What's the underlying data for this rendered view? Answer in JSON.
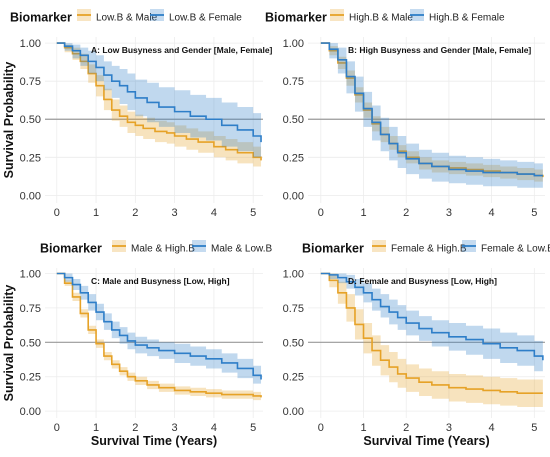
{
  "colors": {
    "series_a": "#E6A227",
    "series_b": "#2E7EC8",
    "refline": "#9a9a9a",
    "grid": "#ececec"
  },
  "axes": {
    "ylabel": "Survival Probability",
    "xlabel": "Survival Time (Years)",
    "xlim": [
      -0.3,
      5.25
    ],
    "ylim": [
      -0.05,
      1.04
    ],
    "x_ticks": [
      "0",
      "1",
      "2",
      "3",
      "4",
      "5"
    ],
    "y_ticks": [
      "0.00",
      "0.25",
      "0.50",
      "0.75",
      "1.00"
    ],
    "y_tick_values": [
      0,
      0.25,
      0.5,
      0.75,
      1
    ],
    "reference_line_y": 0.5
  },
  "chart_data": [
    {
      "type": "line",
      "title": "A: Low Busyness and Gender [Male, Female]",
      "legend_title": "Biomarker",
      "legend_position": "top",
      "series": [
        {
          "name": "Low.B & Male",
          "color": "#E6A227",
          "x": [
            0,
            0.2,
            0.4,
            0.6,
            0.8,
            1.0,
            1.2,
            1.4,
            1.6,
            1.8,
            2.0,
            2.2,
            2.5,
            2.8,
            3.0,
            3.3,
            3.6,
            4.0,
            4.3,
            4.6,
            5.0,
            5.2
          ],
          "y": [
            1.0,
            0.97,
            0.93,
            0.88,
            0.8,
            0.72,
            0.63,
            0.56,
            0.52,
            0.48,
            0.46,
            0.44,
            0.42,
            0.41,
            0.39,
            0.37,
            0.35,
            0.32,
            0.3,
            0.28,
            0.25,
            0.23
          ],
          "lower": [
            1.0,
            0.94,
            0.89,
            0.83,
            0.74,
            0.65,
            0.56,
            0.49,
            0.45,
            0.41,
            0.39,
            0.37,
            0.35,
            0.34,
            0.32,
            0.3,
            0.28,
            0.25,
            0.23,
            0.21,
            0.19,
            0.17
          ],
          "upper": [
            1.0,
            0.99,
            0.97,
            0.93,
            0.86,
            0.79,
            0.7,
            0.63,
            0.59,
            0.55,
            0.53,
            0.51,
            0.49,
            0.48,
            0.46,
            0.44,
            0.42,
            0.39,
            0.37,
            0.35,
            0.32,
            0.3
          ]
        },
        {
          "name": "Low.B & Female",
          "color": "#2E7EC8",
          "x": [
            0,
            0.2,
            0.4,
            0.6,
            0.8,
            1.0,
            1.2,
            1.4,
            1.6,
            1.8,
            2.0,
            2.3,
            2.6,
            3.0,
            3.4,
            3.8,
            4.2,
            4.6,
            5.0,
            5.2
          ],
          "y": [
            1.0,
            0.98,
            0.95,
            0.92,
            0.88,
            0.84,
            0.79,
            0.75,
            0.72,
            0.68,
            0.64,
            0.61,
            0.58,
            0.55,
            0.52,
            0.5,
            0.46,
            0.43,
            0.39,
            0.35
          ],
          "lower": [
            1.0,
            0.95,
            0.9,
            0.85,
            0.8,
            0.75,
            0.69,
            0.64,
            0.6,
            0.56,
            0.52,
            0.48,
            0.45,
            0.41,
            0.38,
            0.36,
            0.32,
            0.29,
            0.25,
            0.22
          ],
          "upper": [
            1.0,
            1.0,
            0.99,
            0.97,
            0.95,
            0.92,
            0.88,
            0.85,
            0.83,
            0.8,
            0.76,
            0.74,
            0.71,
            0.69,
            0.66,
            0.64,
            0.61,
            0.58,
            0.54,
            0.5
          ]
        }
      ]
    },
    {
      "type": "line",
      "title": "B: High Busyness and Gender [Male, Female]",
      "legend_title": "Biomarker",
      "legend_position": "top",
      "series": [
        {
          "name": "High.B & Male",
          "color": "#E6A227",
          "x": [
            0,
            0.2,
            0.4,
            0.6,
            0.8,
            1.0,
            1.2,
            1.4,
            1.6,
            1.8,
            2.0,
            2.3,
            2.6,
            3.0,
            3.4,
            3.8,
            4.2,
            4.6,
            5.0,
            5.2
          ],
          "y": [
            1.0,
            0.95,
            0.87,
            0.77,
            0.66,
            0.56,
            0.47,
            0.4,
            0.34,
            0.29,
            0.25,
            0.21,
            0.19,
            0.18,
            0.17,
            0.16,
            0.15,
            0.14,
            0.13,
            0.12
          ],
          "lower": [
            1.0,
            0.92,
            0.83,
            0.72,
            0.61,
            0.51,
            0.42,
            0.35,
            0.3,
            0.25,
            0.21,
            0.17,
            0.15,
            0.14,
            0.13,
            0.12,
            0.11,
            0.1,
            0.09,
            0.08
          ],
          "upper": [
            1.0,
            0.98,
            0.91,
            0.82,
            0.71,
            0.61,
            0.52,
            0.45,
            0.39,
            0.33,
            0.29,
            0.25,
            0.23,
            0.22,
            0.21,
            0.2,
            0.19,
            0.18,
            0.17,
            0.16
          ]
        },
        {
          "name": "High.B & Female",
          "color": "#2E7EC8",
          "x": [
            0,
            0.2,
            0.4,
            0.6,
            0.8,
            1.0,
            1.2,
            1.4,
            1.6,
            1.8,
            2.0,
            2.3,
            2.6,
            3.0,
            3.4,
            3.8,
            4.2,
            4.6,
            5.0,
            5.2
          ],
          "y": [
            1.0,
            0.96,
            0.89,
            0.78,
            0.67,
            0.57,
            0.48,
            0.4,
            0.34,
            0.28,
            0.24,
            0.21,
            0.19,
            0.17,
            0.16,
            0.15,
            0.15,
            0.14,
            0.13,
            0.13
          ],
          "lower": [
            1.0,
            0.9,
            0.8,
            0.67,
            0.55,
            0.45,
            0.36,
            0.29,
            0.23,
            0.18,
            0.14,
            0.11,
            0.09,
            0.08,
            0.07,
            0.06,
            0.06,
            0.05,
            0.05,
            0.05
          ],
          "upper": [
            1.0,
            1.0,
            0.97,
            0.88,
            0.78,
            0.68,
            0.59,
            0.51,
            0.45,
            0.39,
            0.34,
            0.3,
            0.28,
            0.26,
            0.25,
            0.24,
            0.23,
            0.22,
            0.21,
            0.21
          ]
        }
      ]
    },
    {
      "type": "line",
      "title": "C: Male and Busyness [Low, High]",
      "legend_title": "Biomarker",
      "legend_position": "top",
      "series": [
        {
          "name": "Male & High.B",
          "color": "#E6A227",
          "x": [
            0,
            0.2,
            0.4,
            0.6,
            0.8,
            1.0,
            1.2,
            1.4,
            1.6,
            1.8,
            2.0,
            2.3,
            2.6,
            3.0,
            3.4,
            3.8,
            4.2,
            4.6,
            5.0,
            5.2
          ],
          "y": [
            1.0,
            0.93,
            0.83,
            0.71,
            0.59,
            0.49,
            0.4,
            0.34,
            0.29,
            0.25,
            0.22,
            0.19,
            0.17,
            0.15,
            0.14,
            0.13,
            0.12,
            0.12,
            0.11,
            0.1
          ],
          "lower": [
            1.0,
            0.91,
            0.8,
            0.68,
            0.56,
            0.46,
            0.37,
            0.31,
            0.26,
            0.22,
            0.19,
            0.16,
            0.14,
            0.12,
            0.11,
            0.1,
            0.09,
            0.09,
            0.08,
            0.07
          ],
          "upper": [
            1.0,
            0.95,
            0.86,
            0.74,
            0.62,
            0.52,
            0.43,
            0.37,
            0.32,
            0.28,
            0.25,
            0.22,
            0.2,
            0.18,
            0.17,
            0.16,
            0.15,
            0.15,
            0.14,
            0.13
          ]
        },
        {
          "name": "Male & Low.B",
          "color": "#2E7EC8",
          "x": [
            0,
            0.2,
            0.4,
            0.6,
            0.8,
            1.0,
            1.2,
            1.4,
            1.6,
            1.8,
            2.0,
            2.3,
            2.6,
            3.0,
            3.4,
            3.8,
            4.2,
            4.6,
            5.0,
            5.2
          ],
          "y": [
            1.0,
            0.97,
            0.92,
            0.86,
            0.79,
            0.72,
            0.65,
            0.59,
            0.55,
            0.51,
            0.48,
            0.46,
            0.44,
            0.42,
            0.4,
            0.38,
            0.35,
            0.31,
            0.26,
            0.23
          ],
          "lower": [
            1.0,
            0.94,
            0.88,
            0.81,
            0.73,
            0.66,
            0.59,
            0.53,
            0.49,
            0.45,
            0.42,
            0.4,
            0.38,
            0.35,
            0.33,
            0.31,
            0.28,
            0.24,
            0.2,
            0.17
          ],
          "upper": [
            1.0,
            1.0,
            0.96,
            0.91,
            0.85,
            0.78,
            0.71,
            0.65,
            0.61,
            0.57,
            0.54,
            0.52,
            0.5,
            0.49,
            0.47,
            0.45,
            0.42,
            0.38,
            0.33,
            0.3
          ]
        }
      ]
    },
    {
      "type": "line",
      "title": "D: Female and Busyness [Low, High]",
      "legend_title": "Biomarker",
      "legend_position": "top",
      "series": [
        {
          "name": "Female & High.B",
          "color": "#E6A227",
          "x": [
            0,
            0.2,
            0.4,
            0.6,
            0.8,
            1.0,
            1.2,
            1.4,
            1.6,
            1.8,
            2.0,
            2.3,
            2.6,
            3.0,
            3.4,
            3.8,
            4.2,
            4.6,
            5.0,
            5.2
          ],
          "y": [
            1.0,
            0.95,
            0.86,
            0.75,
            0.63,
            0.53,
            0.44,
            0.37,
            0.32,
            0.27,
            0.24,
            0.21,
            0.19,
            0.17,
            0.16,
            0.15,
            0.14,
            0.13,
            0.13,
            0.13
          ],
          "lower": [
            1.0,
            0.9,
            0.78,
            0.65,
            0.52,
            0.42,
            0.33,
            0.26,
            0.21,
            0.17,
            0.14,
            0.11,
            0.09,
            0.07,
            0.06,
            0.05,
            0.04,
            0.03,
            0.03,
            0.03
          ],
          "upper": [
            1.0,
            1.0,
            0.94,
            0.85,
            0.74,
            0.64,
            0.55,
            0.48,
            0.43,
            0.38,
            0.34,
            0.31,
            0.29,
            0.27,
            0.26,
            0.25,
            0.24,
            0.23,
            0.23,
            0.23
          ]
        },
        {
          "name": "Female & Low.B",
          "color": "#2E7EC8",
          "x": [
            0,
            0.2,
            0.4,
            0.6,
            0.8,
            1.0,
            1.2,
            1.4,
            1.6,
            1.8,
            2.0,
            2.3,
            2.6,
            3.0,
            3.4,
            3.8,
            4.2,
            4.6,
            5.0,
            5.2
          ],
          "y": [
            1.0,
            0.99,
            0.97,
            0.94,
            0.9,
            0.86,
            0.81,
            0.76,
            0.72,
            0.68,
            0.64,
            0.6,
            0.57,
            0.54,
            0.52,
            0.49,
            0.46,
            0.44,
            0.4,
            0.37
          ],
          "lower": [
            1.0,
            0.96,
            0.93,
            0.89,
            0.84,
            0.79,
            0.73,
            0.68,
            0.63,
            0.59,
            0.55,
            0.51,
            0.47,
            0.44,
            0.41,
            0.38,
            0.35,
            0.33,
            0.29,
            0.26
          ],
          "upper": [
            1.0,
            1.0,
            1.0,
            0.99,
            0.96,
            0.93,
            0.89,
            0.85,
            0.81,
            0.77,
            0.73,
            0.69,
            0.66,
            0.64,
            0.62,
            0.6,
            0.57,
            0.55,
            0.51,
            0.48
          ]
        }
      ]
    }
  ]
}
